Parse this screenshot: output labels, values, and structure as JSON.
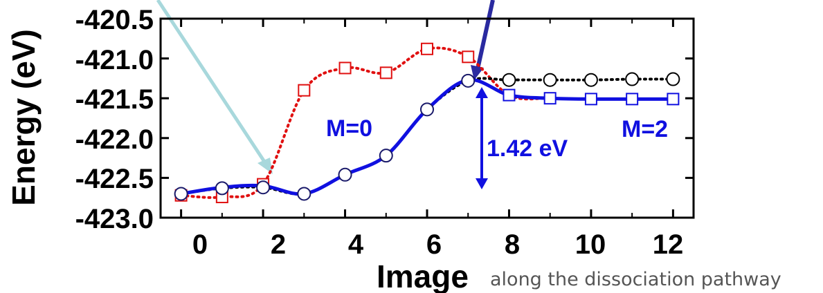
{
  "chart_data": {
    "type": "line",
    "title": "",
    "xlabel": "Image",
    "xlabel_note": "along the dissociation pathway",
    "ylabel": "Energy (eV)",
    "xlim": [
      -0.5,
      12.5
    ],
    "ylim": [
      -423.0,
      -420.5
    ],
    "x_ticks": [
      "0",
      "2",
      "4",
      "6",
      "8",
      "10",
      "12"
    ],
    "y_ticks": [
      "-420.5",
      "-421.0",
      "-421.5",
      "-422.0",
      "-422.5",
      "-423.0"
    ],
    "grid": false,
    "series": [
      {
        "marker": "square",
        "line": "dotted",
        "color": "#e01010",
        "x": [
          0,
          1,
          2,
          3,
          4,
          5,
          6,
          7,
          8,
          9,
          10,
          11,
          12
        ],
        "y": [
          -422.72,
          -422.74,
          -422.58,
          -421.4,
          -421.12,
          -421.18,
          -420.88,
          -420.98,
          -421.46,
          -421.5,
          -421.51,
          -421.51,
          -421.51
        ]
      },
      {
        "marker": "circle",
        "line": "dotted",
        "color": "#000000",
        "x": [
          0,
          1,
          2,
          3,
          4,
          5,
          6,
          7,
          8,
          9,
          10,
          11,
          12
        ],
        "y": [
          -422.7,
          -422.63,
          -422.62,
          -422.7,
          -422.46,
          -422.22,
          -421.64,
          -421.28,
          -421.27,
          -421.27,
          -421.27,
          -421.26,
          -421.26
        ]
      },
      {
        "marker": "none",
        "line": "solid",
        "color": "#1010e0",
        "x": [
          0,
          1,
          2,
          3,
          4,
          5,
          6,
          7,
          8,
          9,
          10,
          11,
          12
        ],
        "y": [
          -422.7,
          -422.62,
          -422.6,
          -422.7,
          -422.46,
          -422.22,
          -421.64,
          -421.27,
          -421.46,
          -421.5,
          -421.51,
          -421.51,
          -421.51
        ]
      }
    ],
    "annotations": {
      "m0": "M=0",
      "m2": "M=2",
      "barrier": "1.42 eV"
    }
  }
}
